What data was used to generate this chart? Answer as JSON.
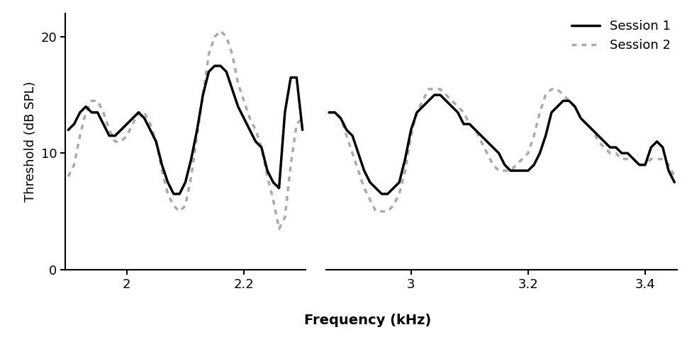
{
  "xlabel": "Frequency (kHz)",
  "ylabel": "Threshold (dB SPL)",
  "ylim": [
    0,
    22
  ],
  "yticks": [
    0,
    10,
    20
  ],
  "panel1_xlim": [
    1.895,
    2.305
  ],
  "panel1_xticks": [
    2.0,
    2.2
  ],
  "panel2_xlim": [
    2.855,
    3.455
  ],
  "panel2_xticks": [
    3.0,
    3.2,
    3.4
  ],
  "session1_color": "#000000",
  "session2_color": "#aaaaaa",
  "lw": 2.5,
  "legend_labels": [
    "Session 1",
    "Session 2"
  ],
  "panel1_s1_x": [
    1.9,
    1.91,
    1.92,
    1.93,
    1.94,
    1.95,
    1.96,
    1.97,
    1.98,
    1.99,
    2.0,
    2.01,
    2.02,
    2.03,
    2.04,
    2.05,
    2.06,
    2.07,
    2.08,
    2.09,
    2.1,
    2.11,
    2.12,
    2.13,
    2.14,
    2.15,
    2.16,
    2.17,
    2.18,
    2.19,
    2.2,
    2.21,
    2.22,
    2.23,
    2.24,
    2.25,
    2.26,
    2.27,
    2.28,
    2.29,
    2.3
  ],
  "panel1_s1_y": [
    12.0,
    12.5,
    13.5,
    14.0,
    13.5,
    13.5,
    12.5,
    11.5,
    11.5,
    12.0,
    12.5,
    13.0,
    13.5,
    13.0,
    12.0,
    11.0,
    9.0,
    7.5,
    6.5,
    6.5,
    7.5,
    9.5,
    12.0,
    15.0,
    17.0,
    17.5,
    17.5,
    17.0,
    15.5,
    14.0,
    13.0,
    12.0,
    11.0,
    10.5,
    8.5,
    7.5,
    7.0,
    13.5,
    16.5,
    16.5,
    12.0
  ],
  "panel1_s2_x": [
    1.9,
    1.91,
    1.92,
    1.93,
    1.94,
    1.95,
    1.96,
    1.97,
    1.98,
    1.99,
    2.0,
    2.01,
    2.02,
    2.03,
    2.04,
    2.05,
    2.06,
    2.07,
    2.08,
    2.09,
    2.1,
    2.11,
    2.12,
    2.13,
    2.14,
    2.15,
    2.16,
    2.17,
    2.18,
    2.19,
    2.2,
    2.21,
    2.22,
    2.23,
    2.24,
    2.25,
    2.26,
    2.27,
    2.28,
    2.29,
    2.3
  ],
  "panel1_s2_y": [
    8.0,
    9.0,
    11.5,
    13.5,
    14.5,
    14.5,
    13.5,
    12.0,
    11.0,
    11.0,
    11.5,
    12.5,
    13.5,
    13.5,
    12.5,
    11.0,
    8.5,
    6.5,
    5.5,
    5.0,
    5.5,
    8.0,
    11.5,
    15.0,
    18.5,
    20.0,
    20.5,
    20.0,
    18.5,
    16.0,
    14.5,
    13.0,
    12.0,
    10.5,
    8.0,
    6.0,
    3.5,
    4.5,
    9.0,
    12.5,
    13.0
  ],
  "panel2_s1_x": [
    2.86,
    2.87,
    2.88,
    2.89,
    2.9,
    2.91,
    2.92,
    2.93,
    2.94,
    2.95,
    2.96,
    2.97,
    2.98,
    2.99,
    3.0,
    3.01,
    3.02,
    3.03,
    3.04,
    3.05,
    3.06,
    3.07,
    3.08,
    3.09,
    3.1,
    3.11,
    3.12,
    3.13,
    3.14,
    3.15,
    3.16,
    3.17,
    3.18,
    3.19,
    3.2,
    3.21,
    3.22,
    3.23,
    3.24,
    3.25,
    3.26,
    3.27,
    3.28,
    3.29,
    3.3,
    3.31,
    3.32,
    3.33,
    3.34,
    3.35,
    3.36,
    3.37,
    3.38,
    3.39,
    3.4,
    3.41,
    3.42,
    3.43,
    3.44,
    3.45
  ],
  "panel2_s1_y": [
    13.5,
    13.5,
    13.0,
    12.0,
    11.5,
    10.0,
    8.5,
    7.5,
    7.0,
    6.5,
    6.5,
    7.0,
    7.5,
    9.5,
    12.0,
    13.5,
    14.0,
    14.5,
    15.0,
    15.0,
    14.5,
    14.0,
    13.5,
    12.5,
    12.5,
    12.0,
    11.5,
    11.0,
    10.5,
    10.0,
    9.0,
    8.5,
    8.5,
    8.5,
    8.5,
    9.0,
    10.0,
    11.5,
    13.5,
    14.0,
    14.5,
    14.5,
    14.0,
    13.0,
    12.5,
    12.0,
    11.5,
    11.0,
    10.5,
    10.5,
    10.0,
    10.0,
    9.5,
    9.0,
    9.0,
    10.5,
    11.0,
    10.5,
    8.5,
    7.5
  ],
  "panel2_s2_x": [
    2.86,
    2.87,
    2.88,
    2.89,
    2.9,
    2.91,
    2.92,
    2.93,
    2.94,
    2.95,
    2.96,
    2.97,
    2.98,
    2.99,
    3.0,
    3.01,
    3.02,
    3.03,
    3.04,
    3.05,
    3.06,
    3.07,
    3.08,
    3.09,
    3.1,
    3.11,
    3.12,
    3.13,
    3.14,
    3.15,
    3.16,
    3.17,
    3.18,
    3.19,
    3.2,
    3.21,
    3.22,
    3.23,
    3.24,
    3.25,
    3.26,
    3.27,
    3.28,
    3.29,
    3.3,
    3.31,
    3.32,
    3.33,
    3.34,
    3.35,
    3.36,
    3.37,
    3.38,
    3.39,
    3.4,
    3.41,
    3.42,
    3.43,
    3.44,
    3.45
  ],
  "panel2_s2_y": [
    13.5,
    13.5,
    13.0,
    11.5,
    10.0,
    8.5,
    7.0,
    6.0,
    5.0,
    5.0,
    5.0,
    5.5,
    6.5,
    8.5,
    11.5,
    13.5,
    14.5,
    15.5,
    15.5,
    15.5,
    15.0,
    14.5,
    14.0,
    13.5,
    12.5,
    12.0,
    11.0,
    10.0,
    9.0,
    8.5,
    8.5,
    8.5,
    9.0,
    9.5,
    10.0,
    11.5,
    13.5,
    15.0,
    15.5,
    15.5,
    15.0,
    14.5,
    14.0,
    13.0,
    12.5,
    12.0,
    11.0,
    10.5,
    10.0,
    10.0,
    9.5,
    9.5,
    9.5,
    9.0,
    9.0,
    9.5,
    9.5,
    9.5,
    9.0,
    8.0
  ]
}
